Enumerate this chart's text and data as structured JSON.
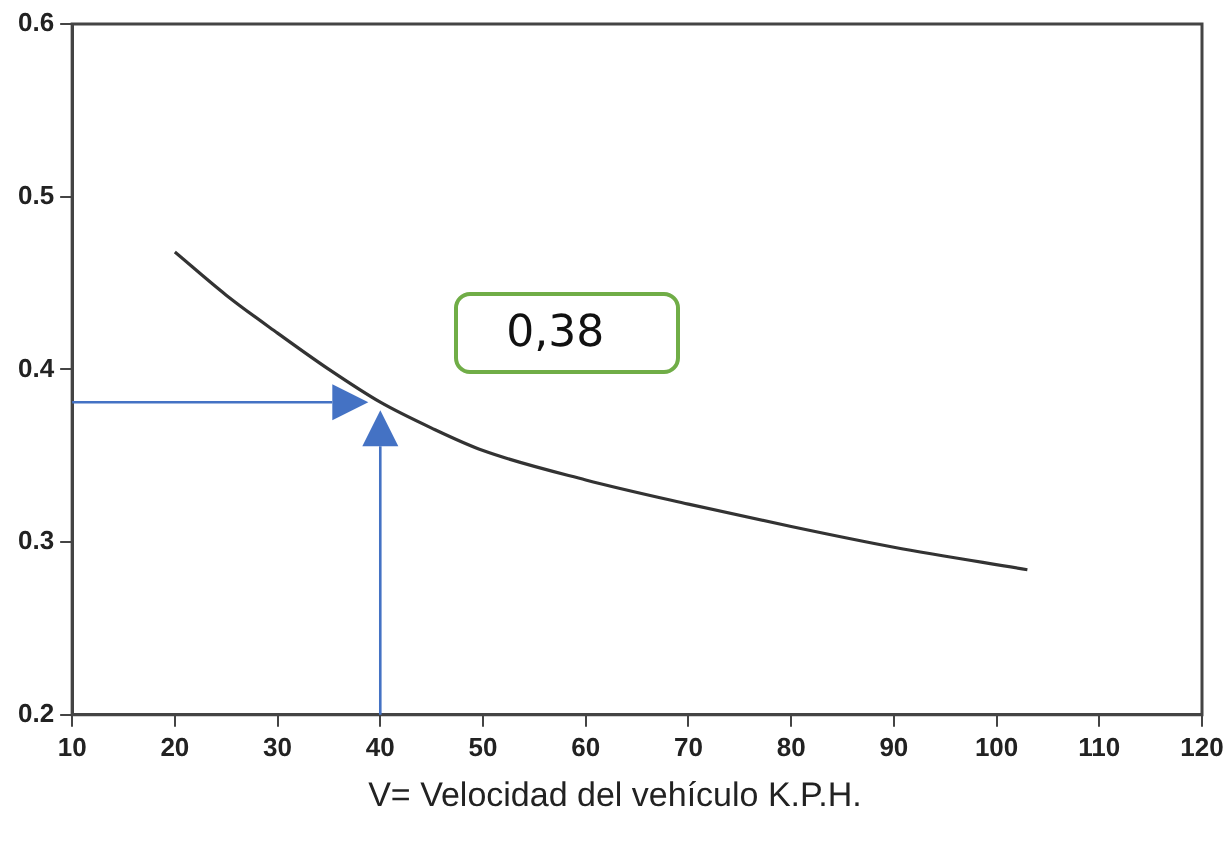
{
  "chart_data": {
    "type": "line",
    "xlabel": "V= Velocidad del vehículo K.P.H.",
    "series": [
      {
        "color": "#333333",
        "x": [
          20,
          25,
          30,
          35,
          40,
          45,
          50,
          60,
          70,
          80,
          90,
          103
        ],
        "values": [
          0.468,
          0.443,
          0.421,
          0.4,
          0.381,
          0.366,
          0.353,
          0.336,
          0.322,
          0.309,
          0.297,
          0.284
        ]
      }
    ],
    "xlim": [
      10,
      120
    ],
    "xticks": [
      10,
      20,
      30,
      40,
      50,
      60,
      70,
      80,
      90,
      100,
      110,
      120
    ],
    "ylim": [
      0.2,
      0.6
    ],
    "yticks": [
      0.2,
      0.3,
      0.4,
      0.5,
      0.6
    ],
    "annotations": [
      "0,38"
    ],
    "grid": false,
    "legend": false,
    "marker": "none",
    "line_style": "solid"
  }
}
